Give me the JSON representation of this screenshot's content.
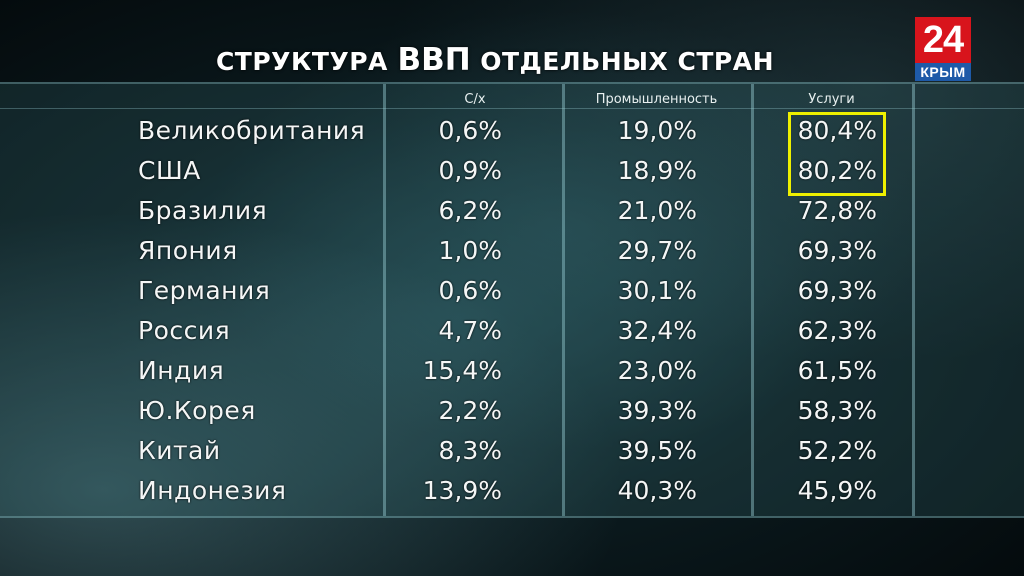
{
  "title": {
    "part1": "СТРУКТУРА",
    "part2": "ВВП",
    "part3": "ОТДЕЛЬНЫХ СТРАН"
  },
  "logo": {
    "number": "24",
    "text": "КРЫМ"
  },
  "headers": {
    "agri": "С/х",
    "industry": "Промышленность",
    "services": "Услуги"
  },
  "rows": [
    {
      "country": "Великобритания",
      "agri": "0,6%",
      "industry": "19,0%",
      "services": "80,4%"
    },
    {
      "country": "США",
      "agri": "0,9%",
      "industry": "18,9%",
      "services": "80,2%"
    },
    {
      "country": "Бразилия",
      "agri": "6,2%",
      "industry": "21,0%",
      "services": "72,8%"
    },
    {
      "country": "Япония",
      "agri": "1,0%",
      "industry": "29,7%",
      "services": "69,3%"
    },
    {
      "country": "Германия",
      "agri": "0,6%",
      "industry": "30,1%",
      "services": "69,3%"
    },
    {
      "country": "Россия",
      "agri": "4,7%",
      "industry": "32,4%",
      "services": "62,3%"
    },
    {
      "country": "Индия",
      "agri": "15,4%",
      "industry": "23,0%",
      "services": "61,5%"
    },
    {
      "country": "Ю.Корея",
      "agri": "2,2%",
      "industry": "39,3%",
      "services": "58,3%"
    },
    {
      "country": "Китай",
      "agri": "8,3%",
      "industry": "39,5%",
      "services": "52,2%"
    },
    {
      "country": "Индонезия",
      "agri": "13,9%",
      "industry": "40,3%",
      "services": "45,9%"
    }
  ],
  "highlight_color": "#eef000"
}
